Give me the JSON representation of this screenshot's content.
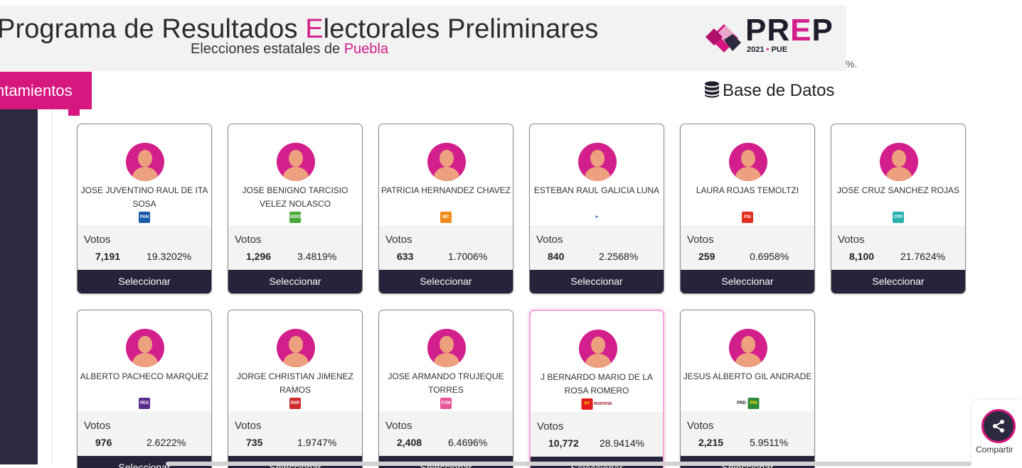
{
  "header": {
    "title_pre": "Programa de Resultados ",
    "title_accent": "E",
    "title_post": "lectorales Preliminares",
    "subtitle_pre": "Elecciones estatales de ",
    "subtitle_state": "Puebla",
    "logo": {
      "p1": "PR",
      "accent": "E",
      "p2": "P",
      "year": "2021",
      "sep": "•",
      "code": "PUE"
    },
    "fragment": "%."
  },
  "tabs": {
    "active": "ntamientos"
  },
  "database_link": "Base de Datos",
  "labels": {
    "votes": "Votos",
    "select": "Seleccionar",
    "share": "Compartir"
  },
  "colors": {
    "accent": "#d6177f",
    "dark": "#25243a",
    "sidebar": "#2b2a3e"
  },
  "candidates": [
    {
      "name": "JOSE JUVENTINO RAUL DE ITA SOSA",
      "party": [
        "pan"
      ],
      "votes": "7,191",
      "percent": "19.3202%"
    },
    {
      "name": "JOSE BENIGNO TARCISIO VELEZ NOLASCO",
      "party": [
        "verde"
      ],
      "votes": "1,296",
      "percent": "3.4819%"
    },
    {
      "name": "PATRICIA HERNANDEZ CHAVEZ",
      "party": [
        "movimiento-ciudadano"
      ],
      "votes": "633",
      "percent": "1.7006%"
    },
    {
      "name": "ESTEBAN RAUL GALICIA LUNA",
      "party": [
        "nueva-alianza"
      ],
      "votes": "840",
      "percent": "2.2568%"
    },
    {
      "name": "LAURA ROJAS TEMOLTZI",
      "party": [
        "psi"
      ],
      "votes": "259",
      "percent": "0.6958%"
    },
    {
      "name": "JOSE CRUZ SANCHEZ ROJAS",
      "party": [
        "compromiso-por-puebla"
      ],
      "votes": "8,100",
      "percent": "21.7624%"
    },
    {
      "name": "ALBERTO PACHECO MARQUEZ",
      "party": [
        "pes"
      ],
      "votes": "976",
      "percent": "2.6222%"
    },
    {
      "name": "JORGE CHRISTIAN JIMENEZ RAMOS",
      "party": [
        "rsp"
      ],
      "votes": "735",
      "percent": "1.9747%"
    },
    {
      "name": "JOSE ARMANDO TRUJEQUE TORRES",
      "party": [
        "fuerza-por-mexico"
      ],
      "votes": "2,408",
      "percent": "6.4696%"
    },
    {
      "name": "J BERNARDO MARIO DE LA ROSA ROMERO",
      "party": [
        "pt",
        "morena"
      ],
      "votes": "10,772",
      "percent": "28.9414%",
      "highlight": true
    },
    {
      "name": "JESUS ALBERTO GIL ANDRADE",
      "party": [
        "prd",
        "pri"
      ],
      "votes": "2,215",
      "percent": "5.9511%"
    }
  ]
}
